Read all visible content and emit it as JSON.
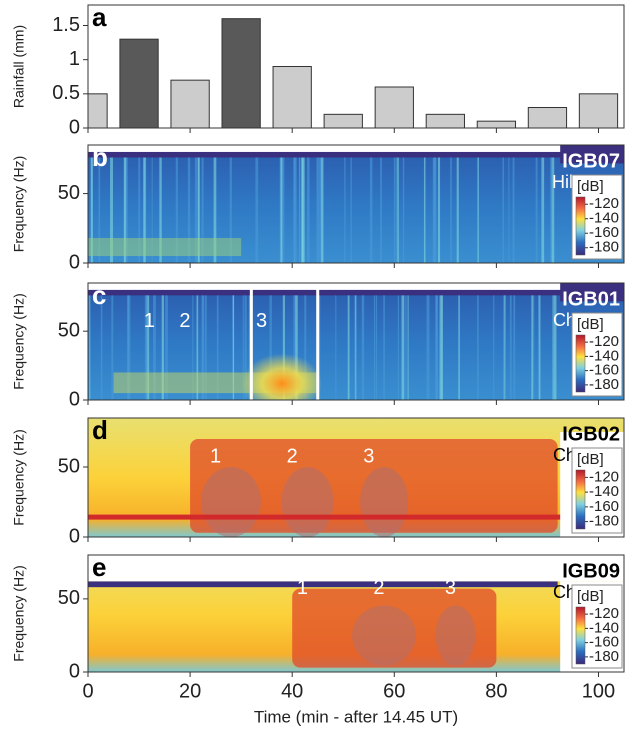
{
  "chart_data": [
    {
      "type": "bar",
      "label": "a",
      "ylabel": "Rainfall (mm)",
      "x": [
        0,
        10,
        20,
        30,
        40,
        50,
        60,
        70,
        80,
        90,
        100
      ],
      "values": [
        0.5,
        1.3,
        0.7,
        1.6,
        0.9,
        0.2,
        0.6,
        0.2,
        0.1,
        0.3,
        0.5
      ],
      "colors": [
        "#cccccc",
        "#595959",
        "#cccccc",
        "#595959",
        "#cccccc",
        "#cccccc",
        "#cccccc",
        "#cccccc",
        "#cccccc",
        "#cccccc",
        "#cccccc"
      ],
      "xlim": [
        0,
        105
      ],
      "ylim": [
        0,
        1.8
      ],
      "yticks": [
        0,
        0.5,
        1,
        1.5
      ]
    },
    {
      "type": "spectrogram",
      "label": "b",
      "station": "IGB07",
      "site": "Hillslope",
      "ylabel": "Frequency (Hz)",
      "xlim": [
        0,
        105
      ],
      "ylim": [
        0,
        85
      ],
      "yticks": [
        0,
        50
      ],
      "colorbar_label": "[dB]",
      "clim": [
        -190,
        -110
      ],
      "cticks": [
        -120,
        -140,
        -160,
        -180
      ],
      "annotations": []
    },
    {
      "type": "spectrogram",
      "label": "c",
      "station": "IGB01",
      "site": "Channel",
      "ylabel": "Frequency (Hz)",
      "xlim": [
        0,
        105
      ],
      "ylim": [
        0,
        85
      ],
      "yticks": [
        0,
        50
      ],
      "colorbar_label": "[dB]",
      "clim": [
        -190,
        -110
      ],
      "cticks": [
        -120,
        -140,
        -160,
        -180
      ],
      "annotations": [
        {
          "text": "1",
          "x": 12,
          "y": 57
        },
        {
          "text": "2",
          "x": 19,
          "y": 57
        },
        {
          "text": "3",
          "x": 34,
          "y": 57
        }
      ]
    },
    {
      "type": "spectrogram",
      "label": "d",
      "station": "IGB02",
      "site": "Channel",
      "ylabel": "Frequency (Hz)",
      "xlim": [
        0,
        105
      ],
      "ylim": [
        0,
        85
      ],
      "yticks": [
        0,
        50
      ],
      "colorbar_label": "[dB]",
      "clim": [
        -190,
        -110
      ],
      "cticks": [
        -120,
        -140,
        -160,
        -180
      ],
      "annotations": [
        {
          "text": "1",
          "x": 25,
          "y": 57
        },
        {
          "text": "2",
          "x": 40,
          "y": 57
        },
        {
          "text": "3",
          "x": 55,
          "y": 57
        }
      ]
    },
    {
      "type": "spectrogram",
      "label": "e",
      "station": "IGB09",
      "site": "Channel",
      "ylabel": "Frequency (Hz)",
      "xlim": [
        0,
        105
      ],
      "ylim": [
        0,
        80
      ],
      "yticks": [
        0,
        50
      ],
      "xticks": [
        0,
        20,
        40,
        60,
        80,
        100
      ],
      "xlabel": "Time (min - after 14.45 UT)",
      "colorbar_label": "[dB]",
      "clim": [
        -190,
        -110
      ],
      "cticks": [
        -120,
        -140,
        -160,
        -180
      ],
      "annotations": [
        {
          "text": "1",
          "x": 42,
          "y": 57
        },
        {
          "text": "2",
          "x": 57,
          "y": 57
        },
        {
          "text": "3",
          "x": 71,
          "y": 57
        }
      ]
    }
  ]
}
